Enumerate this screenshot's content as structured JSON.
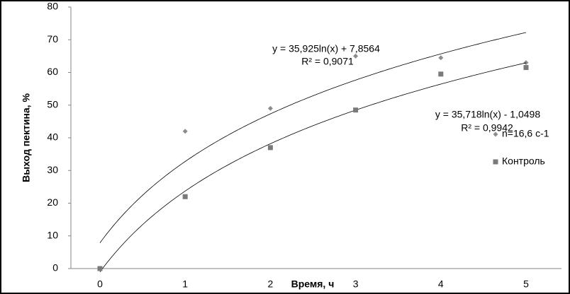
{
  "chart_data": {
    "type": "scatter",
    "y_label": "Выход пектина, %",
    "x_label": "Время, ч",
    "categories": [
      "0",
      "1",
      "2",
      "3",
      "4",
      "5"
    ],
    "ylim": [
      0,
      80
    ],
    "yticks": [
      0,
      10,
      20,
      30,
      40,
      50,
      60,
      70,
      80
    ],
    "series": [
      {
        "name": "n=16,6 c-1",
        "color": "#8c8c8c",
        "marker": "diamond",
        "values": [
          0,
          42,
          49,
          65,
          64.5,
          63
        ],
        "trendline": {
          "equation": "y = 35,925ln(x) + 7,8564",
          "r2": "R² = 0,9071",
          "a": 35.925,
          "b": 7.8564
        }
      },
      {
        "name": "Контроль",
        "color": "#7a7a7a",
        "marker": "square",
        "values": [
          0,
          22,
          37,
          48.5,
          59.5,
          61.5
        ],
        "trendline": {
          "equation": "y = 35,718ln(x) - 1,0498",
          "r2": "R² = 0,9942",
          "a": 35.718,
          "b": -1.0498
        }
      }
    ]
  }
}
